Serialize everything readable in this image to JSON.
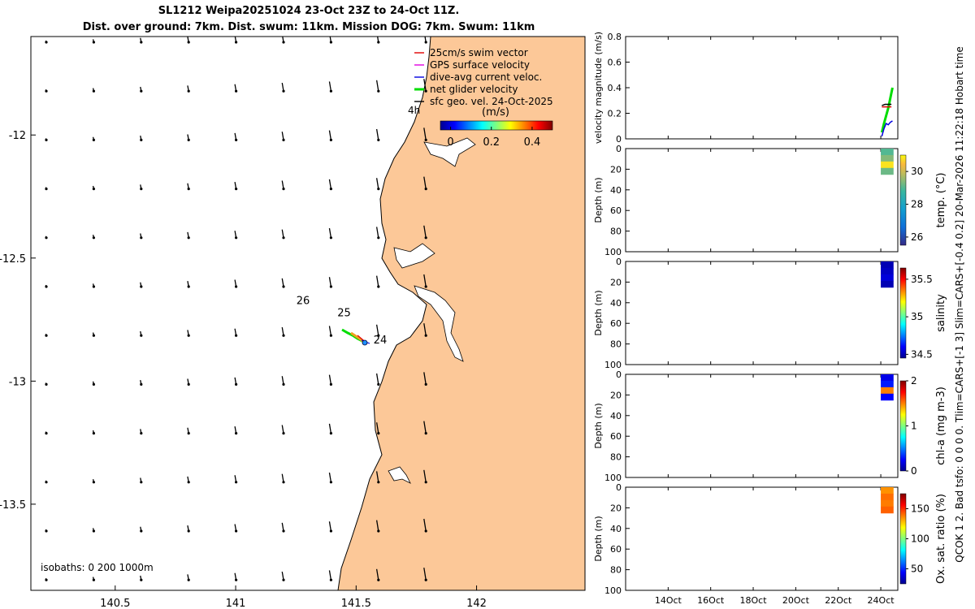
{
  "title_line1": "SL1212 Weipa20251024 23-Oct 23Z to 24-Oct 11Z.",
  "title_line2": "Dist. over ground: 7km. Dist. swum: 11km. Mission DOG: 7km. Swum: 11km",
  "side_label": "QCOK 1  2. Bad tsfo: 0  0  0  0. Tlim=CARS+[-1 3] Slim=CARS+[-0.4 0.2] 20-Mar-2026 11:22:18 Hobart time",
  "colors": {
    "land": "#fcc898",
    "swim_vector": "#e00000",
    "gps_velocity": "#e000e0",
    "dive_avg": "#0000e0",
    "net_glider": "#00dd00",
    "sfc_geo": "#000000"
  },
  "map": {
    "legend": [
      {
        "label": "25cm/s swim vector",
        "color": "#e00000"
      },
      {
        "label": "GPS surface velocity",
        "color": "#e000e0"
      },
      {
        "label": "dive-avg current veloc.",
        "color": "#0000e0"
      },
      {
        "label": "net glider velocity",
        "color": "#00dd00"
      },
      {
        "label": "sfc geo. vel. 24-Oct-2025",
        "color": "#000000"
      }
    ],
    "colorbar_title": "(m/s)",
    "colorbar_ticks": [
      "0",
      "0.2",
      "0.4"
    ],
    "colorbar_range": [
      -0.05,
      0.5
    ],
    "hour_label": "4h",
    "day_labels": [
      {
        "text": "26",
        "lon": 141.28,
        "lat": -12.67
      },
      {
        "text": "25",
        "lon": 141.45,
        "lat": -12.72
      },
      {
        "text": "24",
        "lon": 141.6,
        "lat": -12.83
      }
    ],
    "isobaths_label": "isobaths: 0   200  1000m",
    "xlim": [
      140.15,
      142.45
    ],
    "ylim": [
      -13.85,
      -11.6
    ],
    "xticks": [
      "140.5",
      "141",
      "141.5",
      "142"
    ],
    "yticks": [
      "-12",
      "-12.5",
      "-13",
      "-13.5"
    ]
  },
  "chart_data": [
    {
      "type": "line",
      "title": "",
      "xlabel": "",
      "ylabel": "velocity magnitude (m/s)",
      "ylim": [
        0,
        0.8
      ],
      "yticks": [
        "0",
        "0.2",
        "0.4",
        "0.6",
        "0.8"
      ],
      "xlim": [
        12,
        24.8
      ],
      "xticks": [
        "14Oct",
        "16Oct",
        "18Oct",
        "20Oct",
        "22Oct",
        "24Oct"
      ],
      "series": [
        {
          "color": "#00dd00",
          "x": [
            24.05,
            24.15,
            24.25,
            24.35,
            24.45,
            24.55
          ],
          "y": [
            0.05,
            0.12,
            0.18,
            0.24,
            0.32,
            0.4
          ]
        },
        {
          "color": "#0000e0",
          "x": [
            24.05,
            24.15,
            24.25,
            24.35,
            24.45,
            24.55
          ],
          "y": [
            0.02,
            0.08,
            0.12,
            0.11,
            0.13,
            0.14
          ]
        },
        {
          "color": "#000000",
          "x": [
            24.05,
            24.2,
            24.35,
            24.5
          ],
          "y": [
            0.26,
            0.27,
            0.27,
            0.27
          ]
        },
        {
          "color": "#e00000",
          "x": [
            24.05,
            24.2,
            24.35,
            24.5
          ],
          "y": [
            0.25,
            0.25,
            0.25,
            0.25
          ]
        }
      ]
    },
    {
      "type": "heatmap",
      "xlabel": "",
      "ylabel": "Depth (m)",
      "ylim": [
        0,
        100
      ],
      "yticks": [
        "0",
        "20",
        "40",
        "60",
        "80",
        "100"
      ],
      "colorbar_label": "temp. (°C)",
      "colorbar_range": [
        25.5,
        31
      ],
      "colorbar_ticks": [
        26,
        28,
        30
      ],
      "data": {
        "x_range": [
          24.0,
          24.6
        ],
        "depth_range": [
          0,
          25
        ],
        "values": [
          29.0,
          29.4,
          30.8,
          29.2
        ]
      }
    },
    {
      "type": "heatmap",
      "xlabel": "",
      "ylabel": "Depth (m)",
      "ylim": [
        0,
        100
      ],
      "yticks": [
        "0",
        "20",
        "40",
        "60",
        "80",
        "100"
      ],
      "colorbar_label": "salinity",
      "colorbar_range": [
        34.45,
        35.65
      ],
      "colorbar_ticks": [
        34.5,
        35,
        35.5
      ],
      "data": {
        "x_range": [
          24.0,
          24.6
        ],
        "depth_range": [
          0,
          25
        ],
        "values": [
          34.5,
          34.52,
          34.55,
          34.5
        ]
      }
    },
    {
      "type": "heatmap",
      "xlabel": "",
      "ylabel": "Depth (m)",
      "ylim": [
        0,
        100
      ],
      "yticks": [
        "0",
        "20",
        "40",
        "60",
        "80",
        "100"
      ],
      "colorbar_label": "chl-a  (mg m-3)",
      "colorbar_range": [
        0,
        2
      ],
      "colorbar_ticks": [
        0,
        1,
        2
      ],
      "data": {
        "x_range": [
          24.0,
          24.6
        ],
        "depth_range": [
          0,
          25
        ],
        "values": [
          0.2,
          0.3,
          1.5,
          0.25
        ]
      }
    },
    {
      "type": "heatmap",
      "xlabel": "",
      "ylabel": "Depth (m)",
      "ylim": [
        0,
        100
      ],
      "yticks": [
        "0",
        "20",
        "40",
        "60",
        "80",
        "100"
      ],
      "colorbar_label": "Ox. sat. ratio (%)",
      "colorbar_range": [
        25,
        175
      ],
      "colorbar_ticks": [
        50,
        100,
        150
      ],
      "data": {
        "x_range": [
          24.0,
          24.6
        ],
        "depth_range": [
          0,
          25
        ],
        "values": [
          135,
          140,
          138,
          142
        ]
      }
    }
  ]
}
